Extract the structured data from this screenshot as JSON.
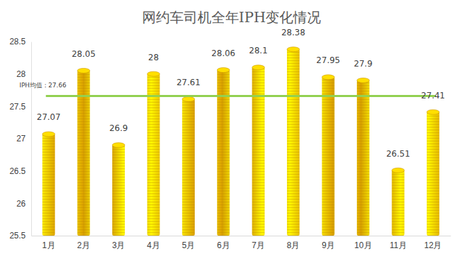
{
  "chart_data": {
    "type": "bar",
    "title": "网约车司机全年IPH变化情况",
    "categories": [
      "1月",
      "2月",
      "3月",
      "4月",
      "5月",
      "6月",
      "7月",
      "8月",
      "9月",
      "10月",
      "11月",
      "12月"
    ],
    "values": [
      27.07,
      28.05,
      26.9,
      28,
      27.61,
      28.06,
      28.1,
      28.38,
      27.95,
      27.9,
      26.51,
      27.41
    ],
    "color": "#f5b400",
    "ylim": [
      25.5,
      28.5
    ],
    "yticks": [
      25.5,
      26,
      26.5,
      27,
      27.5,
      28,
      28.5
    ],
    "grid": false,
    "data_labels": true,
    "reference_line": {
      "value": 27.66,
      "label": "IPH均值：27.66",
      "color": "#92d050"
    }
  }
}
